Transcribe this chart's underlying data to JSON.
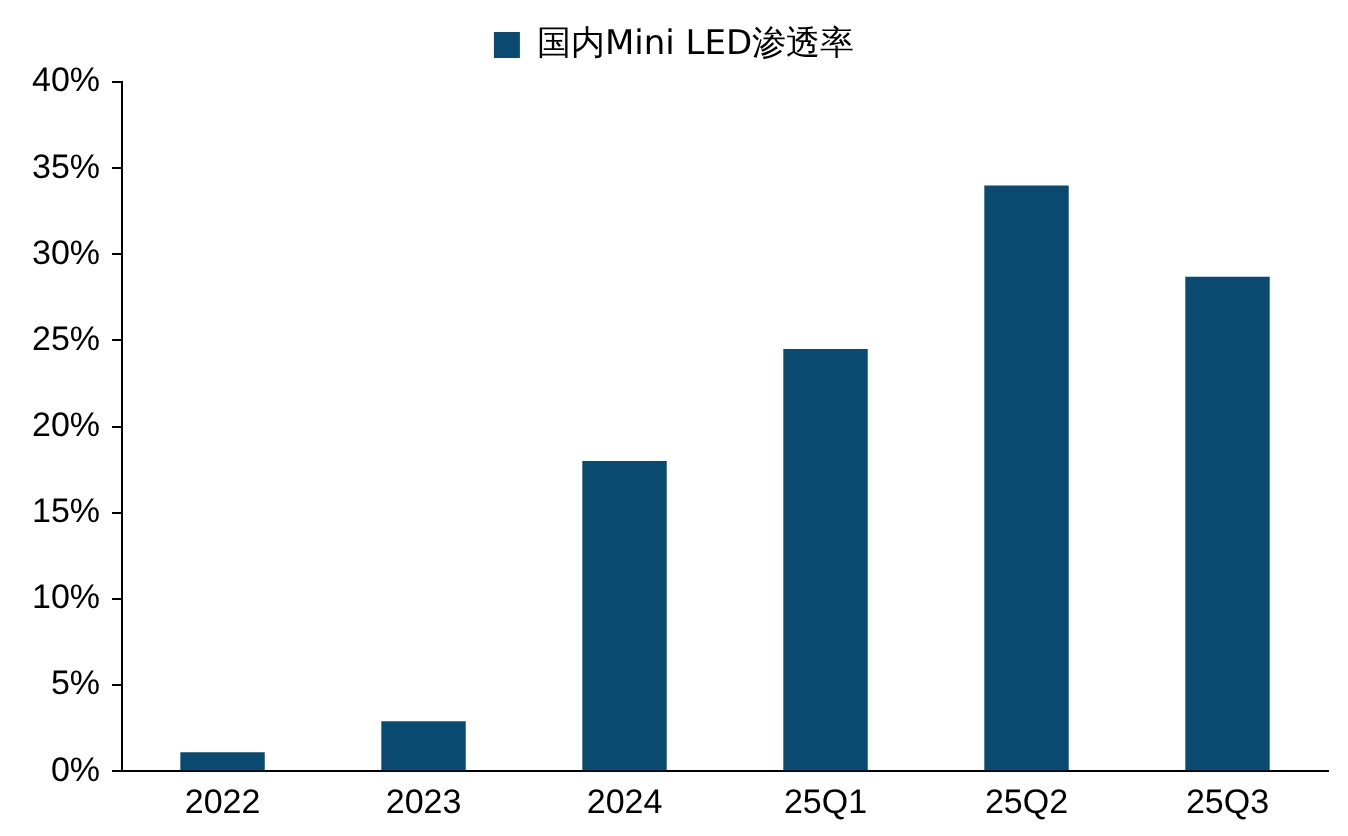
{
  "chart_data": {
    "type": "bar",
    "categories": [
      "2022",
      "2023",
      "2024",
      "25Q1",
      "25Q2",
      "25Q3"
    ],
    "series": [
      {
        "name": "国内Mini LED渗透率",
        "color": "#0a4a70",
        "values": [
          1.1,
          2.9,
          18,
          24.5,
          34,
          28.7
        ]
      }
    ],
    "ylim": [
      0,
      40
    ],
    "yticks": [
      {
        "value": 0,
        "label": "0%"
      },
      {
        "value": 5,
        "label": "5%"
      },
      {
        "value": 10,
        "label": "10%"
      },
      {
        "value": 15,
        "label": "15%"
      },
      {
        "value": 20,
        "label": "20%"
      },
      {
        "value": 25,
        "label": "25%"
      },
      {
        "value": 30,
        "label": "30%"
      },
      {
        "value": 35,
        "label": "35%"
      },
      {
        "value": 40,
        "label": "40%"
      }
    ],
    "grid": false,
    "legend": "top"
  }
}
